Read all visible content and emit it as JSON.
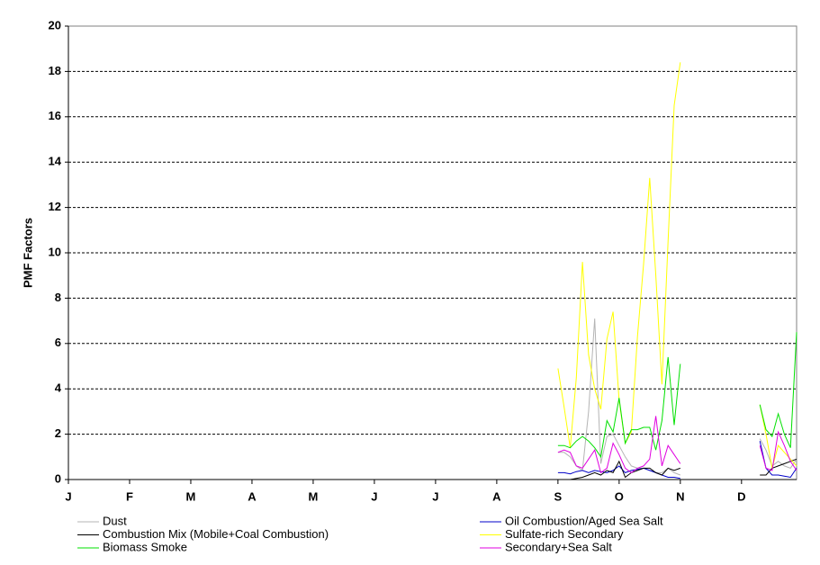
{
  "chart_data": {
    "type": "line",
    "y_label": "PMF Factors",
    "categories": [
      "J",
      null,
      null,
      null,
      null,
      null,
      null,
      null,
      null,
      null,
      "F",
      null,
      null,
      null,
      null,
      null,
      null,
      null,
      null,
      null,
      "M",
      null,
      null,
      null,
      null,
      null,
      null,
      null,
      null,
      null,
      "A",
      null,
      null,
      null,
      null,
      null,
      null,
      null,
      null,
      null,
      "M",
      null,
      null,
      null,
      null,
      null,
      null,
      null,
      null,
      null,
      "J",
      null,
      null,
      null,
      null,
      null,
      null,
      null,
      null,
      null,
      "J",
      null,
      null,
      null,
      null,
      null,
      null,
      null,
      null,
      null,
      "A",
      null,
      null,
      null,
      null,
      null,
      null,
      null,
      null,
      null,
      "S",
      null,
      null,
      null,
      null,
      null,
      null,
      null,
      null,
      null,
      "O",
      null,
      null,
      null,
      null,
      null,
      null,
      null,
      null,
      null,
      "N",
      null,
      null,
      null,
      null,
      null,
      null,
      null,
      null,
      null,
      "D",
      null,
      null,
      null,
      null,
      null,
      null,
      null,
      null,
      null
    ],
    "ylim": [
      0,
      20
    ],
    "yticks": [
      0,
      2,
      4,
      6,
      8,
      10,
      12,
      14,
      16,
      18,
      20
    ],
    "grid": true,
    "series": [
      {
        "name": "Dust",
        "color": "#b4b4b4",
        "values": [
          null,
          null,
          null,
          null,
          null,
          null,
          null,
          null,
          null,
          null,
          null,
          null,
          null,
          null,
          null,
          null,
          null,
          null,
          null,
          null,
          null,
          null,
          null,
          null,
          null,
          null,
          null,
          null,
          null,
          null,
          null,
          null,
          null,
          null,
          null,
          null,
          null,
          null,
          null,
          null,
          null,
          null,
          null,
          null,
          null,
          null,
          null,
          null,
          null,
          null,
          null,
          null,
          null,
          null,
          null,
          null,
          null,
          null,
          null,
          null,
          null,
          null,
          null,
          null,
          null,
          null,
          null,
          null,
          null,
          null,
          null,
          null,
          null,
          null,
          null,
          null,
          null,
          null,
          null,
          null,
          1.2,
          1.2,
          1.0,
          0.6,
          0.4,
          3.0,
          7.1,
          0.7,
          1.9,
          2.0,
          1.5,
          1.0,
          0.6,
          0.5,
          0.5,
          0.4,
          0.3,
          0.3,
          0.5,
          0.3,
          0.2,
          null,
          null,
          null,
          null,
          null,
          null,
          null,
          null,
          null,
          null,
          null,
          null,
          1.8,
          1.3,
          0.6,
          0.8,
          0.6,
          0.5,
          0.9
        ]
      },
      {
        "name": "Oil Combustion/Aged Sea Salt",
        "color": "#0000c8",
        "values": [
          null,
          null,
          null,
          null,
          null,
          null,
          null,
          null,
          null,
          null,
          null,
          null,
          null,
          null,
          null,
          null,
          null,
          null,
          null,
          null,
          null,
          null,
          null,
          null,
          null,
          null,
          null,
          null,
          null,
          null,
          null,
          null,
          null,
          null,
          null,
          null,
          null,
          null,
          null,
          null,
          null,
          null,
          null,
          null,
          null,
          null,
          null,
          null,
          null,
          null,
          null,
          null,
          null,
          null,
          null,
          null,
          null,
          null,
          null,
          null,
          null,
          null,
          null,
          null,
          null,
          null,
          null,
          null,
          null,
          null,
          null,
          null,
          null,
          null,
          null,
          null,
          null,
          null,
          null,
          null,
          0.3,
          0.3,
          0.25,
          0.35,
          0.4,
          0.3,
          0.4,
          0.35,
          0.3,
          0.4,
          0.6,
          0.3,
          0.4,
          0.45,
          0.5,
          0.4,
          0.3,
          0.2,
          0.1,
          0.1,
          0.05,
          null,
          null,
          null,
          null,
          null,
          null,
          null,
          null,
          null,
          null,
          null,
          null,
          1.7,
          0.5,
          0.2,
          0.2,
          0.15,
          0.1,
          0.5
        ]
      },
      {
        "name": "Combustion Mix (Mobile+Coal Combustion)",
        "color": "#000000",
        "values": [
          null,
          null,
          null,
          null,
          null,
          null,
          null,
          null,
          null,
          null,
          null,
          null,
          null,
          null,
          null,
          null,
          null,
          null,
          null,
          null,
          null,
          null,
          null,
          null,
          null,
          null,
          null,
          null,
          null,
          null,
          null,
          null,
          null,
          null,
          null,
          null,
          null,
          null,
          null,
          null,
          null,
          null,
          null,
          null,
          null,
          null,
          null,
          null,
          null,
          null,
          null,
          null,
          null,
          null,
          null,
          null,
          null,
          null,
          null,
          null,
          null,
          null,
          null,
          null,
          null,
          null,
          null,
          null,
          null,
          null,
          null,
          null,
          null,
          null,
          null,
          null,
          null,
          null,
          null,
          null,
          null,
          null,
          0.0,
          0.05,
          0.1,
          0.2,
          0.3,
          0.2,
          0.4,
          0.3,
          0.8,
          0.1,
          0.3,
          0.4,
          0.5,
          0.5,
          0.3,
          0.2,
          0.5,
          0.4,
          0.5,
          null,
          null,
          null,
          null,
          null,
          null,
          null,
          null,
          null,
          null,
          null,
          null,
          0.2,
          0.2,
          0.5,
          0.6,
          0.7,
          0.8,
          0.9
        ]
      },
      {
        "name": "Sulfate-rich Secondary",
        "color": "#ffff00",
        "values": [
          null,
          null,
          null,
          null,
          null,
          null,
          null,
          null,
          null,
          null,
          null,
          null,
          null,
          null,
          null,
          null,
          null,
          null,
          null,
          null,
          null,
          null,
          null,
          null,
          null,
          null,
          null,
          null,
          null,
          null,
          null,
          null,
          null,
          null,
          null,
          null,
          null,
          null,
          null,
          null,
          null,
          null,
          null,
          null,
          null,
          null,
          null,
          null,
          null,
          null,
          null,
          null,
          null,
          null,
          null,
          null,
          null,
          null,
          null,
          null,
          null,
          null,
          null,
          null,
          null,
          null,
          null,
          null,
          null,
          null,
          null,
          null,
          null,
          null,
          null,
          null,
          null,
          null,
          null,
          null,
          4.9,
          3.2,
          1.4,
          4.5,
          9.6,
          5.5,
          4.0,
          3.1,
          6.2,
          7.4,
          3.5,
          1.6,
          2.1,
          6.3,
          9.5,
          13.3,
          9.0,
          4.2,
          10.5,
          16.5,
          18.4,
          null,
          null,
          null,
          null,
          null,
          null,
          null,
          null,
          null,
          null,
          null,
          null,
          3.3,
          2.0,
          0.5,
          1.5,
          1.2,
          0.9,
          0.6
        ]
      },
      {
        "name": "Biomass Smoke",
        "color": "#00e000",
        "values": [
          null,
          null,
          null,
          null,
          null,
          null,
          null,
          null,
          null,
          null,
          null,
          null,
          null,
          null,
          null,
          null,
          null,
          null,
          null,
          null,
          null,
          null,
          null,
          null,
          null,
          null,
          null,
          null,
          null,
          null,
          null,
          null,
          null,
          null,
          null,
          null,
          null,
          null,
          null,
          null,
          null,
          null,
          null,
          null,
          null,
          null,
          null,
          null,
          null,
          null,
          null,
          null,
          null,
          null,
          null,
          null,
          null,
          null,
          null,
          null,
          null,
          null,
          null,
          null,
          null,
          null,
          null,
          null,
          null,
          null,
          null,
          null,
          null,
          null,
          null,
          null,
          null,
          null,
          null,
          null,
          1.5,
          1.5,
          1.4,
          1.7,
          1.9,
          1.7,
          1.4,
          1.0,
          2.6,
          2.1,
          3.6,
          1.6,
          2.2,
          2.2,
          2.3,
          2.3,
          1.3,
          2.6,
          5.4,
          2.4,
          5.1,
          null,
          null,
          null,
          null,
          null,
          null,
          null,
          null,
          null,
          null,
          null,
          null,
          3.3,
          2.2,
          1.9,
          2.9,
          2.0,
          1.4,
          6.5
        ]
      },
      {
        "name": "Secondary+Sea Salt",
        "color": "#e000e0",
        "values": [
          null,
          null,
          null,
          null,
          null,
          null,
          null,
          null,
          null,
          null,
          null,
          null,
          null,
          null,
          null,
          null,
          null,
          null,
          null,
          null,
          null,
          null,
          null,
          null,
          null,
          null,
          null,
          null,
          null,
          null,
          null,
          null,
          null,
          null,
          null,
          null,
          null,
          null,
          null,
          null,
          null,
          null,
          null,
          null,
          null,
          null,
          null,
          null,
          null,
          null,
          null,
          null,
          null,
          null,
          null,
          null,
          null,
          null,
          null,
          null,
          null,
          null,
          null,
          null,
          null,
          null,
          null,
          null,
          null,
          null,
          null,
          null,
          null,
          null,
          null,
          null,
          null,
          null,
          null,
          null,
          1.2,
          1.3,
          1.2,
          0.6,
          0.5,
          0.9,
          1.3,
          0.3,
          0.5,
          1.6,
          1.1,
          0.5,
          0.3,
          0.5,
          0.6,
          0.9,
          2.8,
          0.6,
          1.5,
          1.1,
          0.7,
          null,
          null,
          null,
          null,
          null,
          null,
          null,
          null,
          null,
          null,
          null,
          null,
          1.5,
          0.5,
          0.4,
          2.1,
          1.5,
          0.8,
          0.4
        ]
      }
    ]
  }
}
